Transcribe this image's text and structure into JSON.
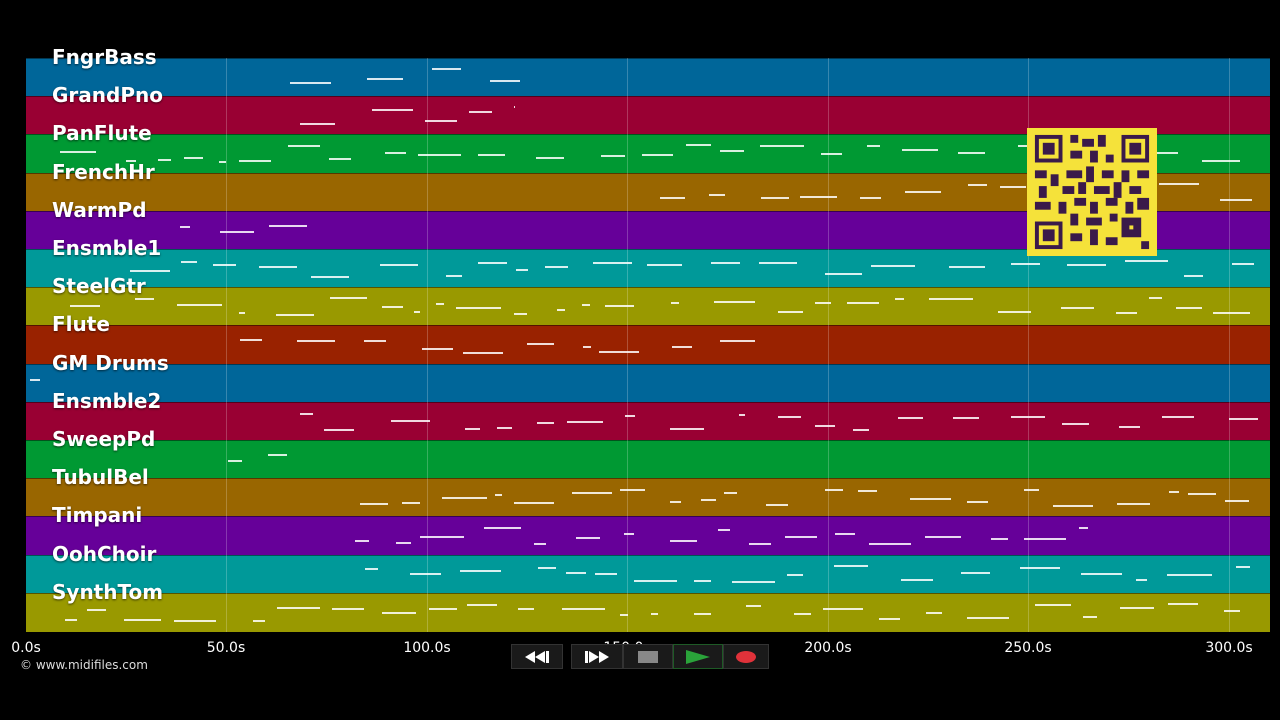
{
  "tracks": [
    {
      "name": "FngrBass",
      "color": "#006699"
    },
    {
      "name": "GrandPno",
      "color": "#990033"
    },
    {
      "name": "PanFlute",
      "color": "#009933"
    },
    {
      "name": "FrenchHr",
      "color": "#996600"
    },
    {
      "name": "WarmPd",
      "color": "#660099"
    },
    {
      "name": "Ensmble1",
      "color": "#009999"
    },
    {
      "name": "SteelGtr",
      "color": "#999900"
    },
    {
      "name": "Flute",
      "color": "#992200"
    },
    {
      "name": "GM Drums",
      "color": "#006699"
    },
    {
      "name": "Ensmble2",
      "color": "#990033"
    },
    {
      "name": "SweepPd",
      "color": "#009933"
    },
    {
      "name": "TubulBel",
      "color": "#996600"
    },
    {
      "name": "Timpani",
      "color": "#660099"
    },
    {
      "name": "OohChoir",
      "color": "#009999"
    },
    {
      "name": "SynthTom",
      "color": "#999900"
    }
  ],
  "timeline": {
    "ticks": [
      "0.0s",
      "50.0s",
      "100.0s",
      "150.0s",
      "200.0s",
      "250.0s",
      "300.0s"
    ]
  },
  "transport": {
    "rewind_icon": "rewind-icon",
    "forward_icon": "fast-forward-icon",
    "stop_icon": "stop-icon",
    "play_icon": "play-icon",
    "record_icon": "record-icon"
  },
  "footer": {
    "copyright": "© www.midifiles.com"
  },
  "colors": {
    "background": "#000000",
    "qr_yellow": "#f5e23a",
    "qr_dark": "#3a1a4a",
    "play": "#2aa33a",
    "record": "#e0323a",
    "stop": "#888888"
  }
}
